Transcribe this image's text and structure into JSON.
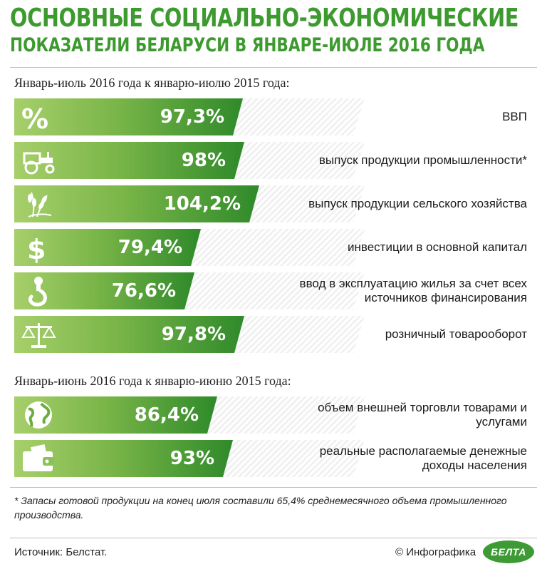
{
  "header": {
    "title_line1": "ОСНОВНЫЕ СОЦИАЛЬНО-ЭКОНОМИЧЕСКИЕ",
    "title_line2": "ПОКАЗАТЕЛИ БЕЛАРУСИ В ЯНВАРЕ-ИЮЛЕ 2016 ГОДА"
  },
  "colors": {
    "title": "#3c9a2e",
    "bar_light": "#a7cf6b",
    "bar_dark": "#2f8a2a"
  },
  "footnote": "* Запасы готовой продукции на конец июля составили 65,4% среднемесячного объема промышленного производства.",
  "source": "Источник: Белстат.",
  "credit": "© Инфографика",
  "logo_text": "БЕЛТА",
  "chart_data": [
    {
      "type": "bar",
      "orientation": "horizontal",
      "title": "Январь-июль 2016 года к январю-июлю 2015 года:",
      "unit": "%",
      "categories": [
        "ВВП",
        "выпуск продукции промышленности*",
        "выпуск продукции сельского хозяйства",
        "инвестиции в основной капитал",
        "ввод в эксплуатацию жилья за счет всех источников финансирования",
        "розничный товарооборот"
      ],
      "values": [
        97.3,
        98,
        104.2,
        79.4,
        76.6,
        97.8
      ],
      "value_labels": [
        "97,3%",
        "98%",
        "104,2%",
        "79,4%",
        "76,6%",
        "97,8%"
      ],
      "icons": [
        "percent-icon",
        "tractor-icon",
        "wheat-icon",
        "dollar-icon",
        "crane-hook-icon",
        "scales-icon"
      ]
    },
    {
      "type": "bar",
      "orientation": "horizontal",
      "title": "Январь-июнь 2016 года к январю-июню 2015 года:",
      "unit": "%",
      "categories": [
        "объем внешней торговли товарами и услугами",
        "реальные располагаемые денежные доходы населения"
      ],
      "values": [
        86.4,
        93
      ],
      "value_labels": [
        "86,4%",
        "93%"
      ],
      "icons": [
        "globe-icon",
        "wallet-icon"
      ]
    }
  ]
}
